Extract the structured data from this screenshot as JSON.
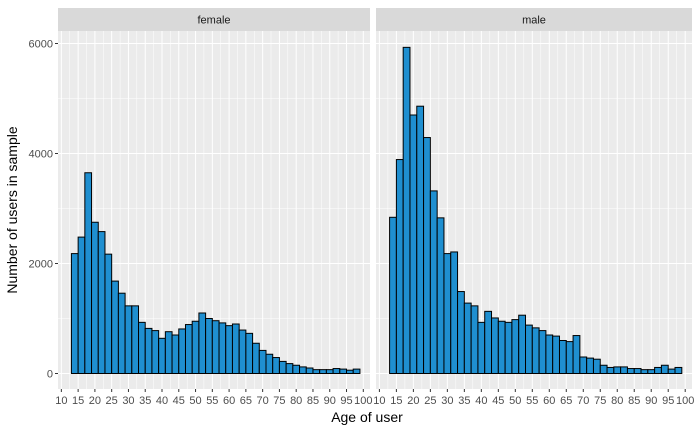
{
  "chart_data": {
    "type": "bar",
    "xlabel": "Age of user",
    "ylabel": "Number of users in sample",
    "xlim": [
      9,
      102
    ],
    "ylim": [
      0,
      6000
    ],
    "x_ticks": [
      "10",
      "15",
      "20",
      "25",
      "30",
      "35",
      "40",
      "45",
      "50",
      "55",
      "60",
      "65",
      "70",
      "75",
      "80",
      "85",
      "90",
      "95",
      "100"
    ],
    "y_ticks": [
      "0",
      "2000",
      "4000",
      "6000"
    ],
    "bin_width": 2,
    "x": [
      14,
      16,
      18,
      20,
      22,
      24,
      26,
      28,
      30,
      32,
      34,
      36,
      38,
      40,
      42,
      44,
      46,
      48,
      50,
      52,
      54,
      56,
      58,
      60,
      62,
      64,
      66,
      68,
      70,
      72,
      74,
      76,
      78,
      80,
      82,
      84,
      86,
      88,
      90,
      92,
      94,
      96,
      98
    ],
    "series": [
      {
        "name": "female",
        "values": [
          2180,
          2480,
          3650,
          2750,
          2580,
          2170,
          1680,
          1460,
          1230,
          1230,
          930,
          820,
          780,
          640,
          760,
          700,
          810,
          890,
          950,
          1100,
          1000,
          960,
          920,
          870,
          900,
          790,
          730,
          550,
          420,
          350,
          290,
          220,
          180,
          150,
          120,
          100,
          70,
          70,
          70,
          90,
          80,
          60,
          80
        ]
      },
      {
        "name": "male",
        "values": [
          2840,
          3890,
          5930,
          4700,
          4860,
          4290,
          3320,
          2830,
          2180,
          2210,
          1490,
          1280,
          1230,
          930,
          1130,
          1010,
          950,
          930,
          980,
          1060,
          880,
          830,
          780,
          700,
          680,
          600,
          580,
          690,
          300,
          280,
          260,
          150,
          110,
          120,
          120,
          90,
          90,
          70,
          70,
          110,
          150,
          80,
          110
        ]
      }
    ],
    "colors": {
      "fill": "#1f8fd0",
      "outline": "#000000",
      "panel": "#ebebeb",
      "grid": "#ffffff",
      "strip": "#d9d9d9"
    },
    "grid": true,
    "legend": "none"
  }
}
